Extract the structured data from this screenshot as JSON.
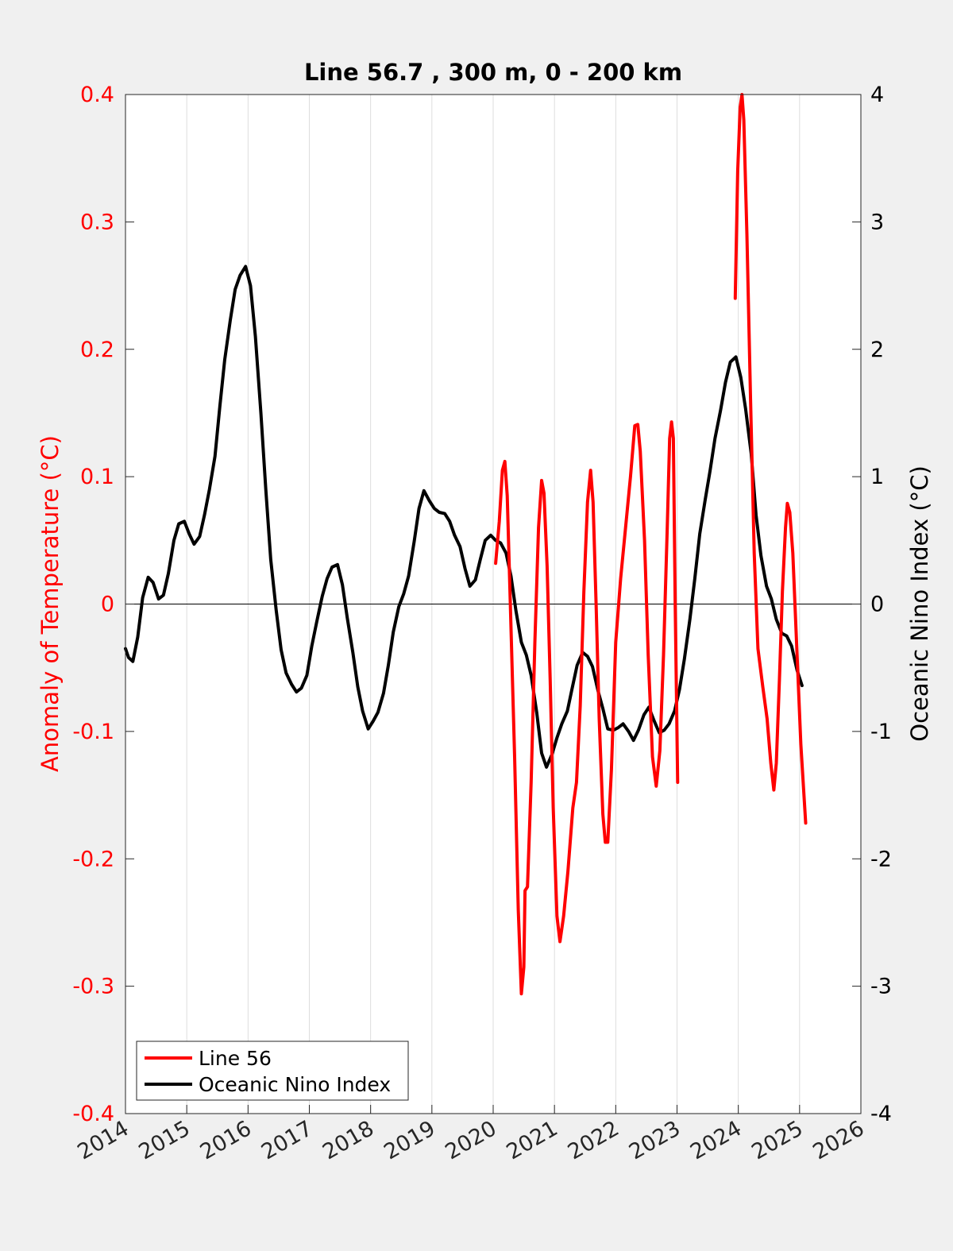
{
  "chart_data": {
    "type": "line",
    "title": "Line 56.7 , 300 m, 0 - 200 km",
    "xlim": [
      2014,
      2026
    ],
    "x_ticks": [
      "2014",
      "2015",
      "2016",
      "2017",
      "2018",
      "2019",
      "2020",
      "2021",
      "2022",
      "2023",
      "2024",
      "2025",
      "2026"
    ],
    "y_left": {
      "label": "Anomaly of Temperature (°C)",
      "lim": [
        -0.4,
        0.4
      ],
      "ticks": [
        "-0.4",
        "-0.3",
        "-0.2",
        "-0.1",
        "0",
        "0.1",
        "0.2",
        "0.3",
        "0.4"
      ],
      "color": "#ff0000"
    },
    "y_right": {
      "label": "Oceanic Nino Index (°C)",
      "lim": [
        -4,
        4
      ],
      "ticks": [
        "-4",
        "-3",
        "-2",
        "-1",
        "0",
        "1",
        "2",
        "3",
        "4"
      ],
      "color": "#000000"
    },
    "grid": "vertical",
    "zero_line": true,
    "legend": {
      "placement": "bottom-left",
      "entries": [
        "Line 56",
        "Oceanic Nino Index"
      ]
    },
    "series": [
      {
        "name": "Line 56",
        "axis": "left",
        "color": "#ff0000",
        "segments": [
          [
            [
              2020.04,
              0.032
            ],
            [
              2020.1,
              0.065
            ],
            [
              2020.15,
              0.105
            ],
            [
              2020.19,
              0.112
            ],
            [
              2020.23,
              0.085
            ],
            [
              2020.28,
              0.0
            ],
            [
              2020.35,
              -0.12
            ],
            [
              2020.41,
              -0.24
            ],
            [
              2020.46,
              -0.306
            ],
            [
              2020.5,
              -0.285
            ],
            [
              2020.52,
              -0.225
            ],
            [
              2020.56,
              -0.222
            ],
            [
              2020.62,
              -0.14
            ],
            [
              2020.68,
              -0.03
            ],
            [
              2020.74,
              0.06
            ],
            [
              2020.79,
              0.097
            ],
            [
              2020.83,
              0.087
            ],
            [
              2020.88,
              0.03
            ],
            [
              2020.93,
              -0.06
            ],
            [
              2020.98,
              -0.16
            ],
            [
              2021.04,
              -0.245
            ],
            [
              2021.09,
              -0.265
            ],
            [
              2021.15,
              -0.245
            ],
            [
              2021.22,
              -0.21
            ],
            [
              2021.3,
              -0.16
            ],
            [
              2021.36,
              -0.14
            ],
            [
              2021.42,
              -0.08
            ],
            [
              2021.48,
              0.01
            ],
            [
              2021.54,
              0.08
            ],
            [
              2021.59,
              0.105
            ],
            [
              2021.63,
              0.08
            ],
            [
              2021.68,
              0.0
            ],
            [
              2021.73,
              -0.09
            ],
            [
              2021.79,
              -0.165
            ],
            [
              2021.83,
              -0.187
            ],
            [
              2021.87,
              -0.187
            ],
            [
              2021.93,
              -0.13
            ],
            [
              2022.0,
              -0.03
            ],
            [
              2022.08,
              0.02
            ],
            [
              2022.16,
              0.06
            ],
            [
              2022.24,
              0.1
            ],
            [
              2022.31,
              0.14
            ],
            [
              2022.36,
              0.141
            ],
            [
              2022.4,
              0.12
            ],
            [
              2022.47,
              0.05
            ],
            [
              2022.53,
              -0.04
            ],
            [
              2022.6,
              -0.12
            ],
            [
              2022.66,
              -0.143
            ],
            [
              2022.72,
              -0.115
            ],
            [
              2022.78,
              -0.04
            ],
            [
              2022.84,
              0.06
            ],
            [
              2022.88,
              0.13
            ],
            [
              2022.91,
              0.143
            ],
            [
              2022.94,
              0.13
            ],
            [
              2022.97,
              0.0
            ],
            [
              2023.01,
              -0.14
            ]
          ],
          [
            [
              2023.95,
              0.24
            ],
            [
              2023.99,
              0.34
            ],
            [
              2024.03,
              0.39
            ],
            [
              2024.06,
              0.4
            ],
            [
              2024.09,
              0.38
            ],
            [
              2024.14,
              0.29
            ],
            [
              2024.2,
              0.16
            ],
            [
              2024.26,
              0.04
            ],
            [
              2024.32,
              -0.035
            ],
            [
              2024.4,
              -0.065
            ],
            [
              2024.47,
              -0.09
            ],
            [
              2024.53,
              -0.125
            ],
            [
              2024.58,
              -0.146
            ],
            [
              2024.62,
              -0.125
            ],
            [
              2024.67,
              -0.06
            ],
            [
              2024.72,
              0.01
            ],
            [
              2024.77,
              0.06
            ],
            [
              2024.8,
              0.079
            ],
            [
              2024.84,
              0.072
            ],
            [
              2024.89,
              0.04
            ],
            [
              2024.95,
              -0.03
            ],
            [
              2025.02,
              -0.11
            ],
            [
              2025.1,
              -0.172
            ]
          ]
        ]
      },
      {
        "name": "Oceanic Nino Index",
        "axis": "right",
        "color": "#000000",
        "points": [
          [
            2014.0,
            -0.35
          ],
          [
            2014.05,
            -0.42
          ],
          [
            2014.12,
            -0.45
          ],
          [
            2014.2,
            -0.26
          ],
          [
            2014.28,
            0.05
          ],
          [
            2014.37,
            0.21
          ],
          [
            2014.45,
            0.17
          ],
          [
            2014.54,
            0.04
          ],
          [
            2014.62,
            0.07
          ],
          [
            2014.7,
            0.24
          ],
          [
            2014.79,
            0.5
          ],
          [
            2014.87,
            0.63
          ],
          [
            2014.96,
            0.65
          ],
          [
            2015.04,
            0.55
          ],
          [
            2015.12,
            0.47
          ],
          [
            2015.21,
            0.53
          ],
          [
            2015.29,
            0.7
          ],
          [
            2015.37,
            0.9
          ],
          [
            2015.46,
            1.16
          ],
          [
            2015.54,
            1.55
          ],
          [
            2015.62,
            1.92
          ],
          [
            2015.71,
            2.23
          ],
          [
            2015.79,
            2.47
          ],
          [
            2015.87,
            2.58
          ],
          [
            2015.96,
            2.65
          ],
          [
            2016.04,
            2.5
          ],
          [
            2016.12,
            2.1
          ],
          [
            2016.21,
            1.5
          ],
          [
            2016.29,
            0.9
          ],
          [
            2016.37,
            0.35
          ],
          [
            2016.46,
            -0.05
          ],
          [
            2016.54,
            -0.36
          ],
          [
            2016.62,
            -0.54
          ],
          [
            2016.71,
            -0.63
          ],
          [
            2016.79,
            -0.69
          ],
          [
            2016.87,
            -0.66
          ],
          [
            2016.96,
            -0.56
          ],
          [
            2017.04,
            -0.33
          ],
          [
            2017.12,
            -0.14
          ],
          [
            2017.21,
            0.06
          ],
          [
            2017.29,
            0.2
          ],
          [
            2017.37,
            0.29
          ],
          [
            2017.46,
            0.31
          ],
          [
            2017.54,
            0.15
          ],
          [
            2017.62,
            -0.11
          ],
          [
            2017.71,
            -0.38
          ],
          [
            2017.79,
            -0.65
          ],
          [
            2017.87,
            -0.84
          ],
          [
            2017.96,
            -0.98
          ],
          [
            2018.04,
            -0.92
          ],
          [
            2018.12,
            -0.85
          ],
          [
            2018.21,
            -0.7
          ],
          [
            2018.29,
            -0.48
          ],
          [
            2018.37,
            -0.22
          ],
          [
            2018.46,
            -0.02
          ],
          [
            2018.54,
            0.08
          ],
          [
            2018.62,
            0.22
          ],
          [
            2018.71,
            0.49
          ],
          [
            2018.79,
            0.75
          ],
          [
            2018.87,
            0.89
          ],
          [
            2018.96,
            0.81
          ],
          [
            2019.04,
            0.75
          ],
          [
            2019.12,
            0.72
          ],
          [
            2019.21,
            0.71
          ],
          [
            2019.29,
            0.65
          ],
          [
            2019.37,
            0.54
          ],
          [
            2019.46,
            0.45
          ],
          [
            2019.54,
            0.28
          ],
          [
            2019.62,
            0.14
          ],
          [
            2019.71,
            0.19
          ],
          [
            2019.79,
            0.35
          ],
          [
            2019.87,
            0.5
          ],
          [
            2019.96,
            0.54
          ],
          [
            2020.04,
            0.5
          ],
          [
            2020.12,
            0.48
          ],
          [
            2020.21,
            0.4
          ],
          [
            2020.29,
            0.22
          ],
          [
            2020.37,
            -0.05
          ],
          [
            2020.46,
            -0.3
          ],
          [
            2020.54,
            -0.4
          ],
          [
            2020.62,
            -0.56
          ],
          [
            2020.71,
            -0.85
          ],
          [
            2020.79,
            -1.17
          ],
          [
            2020.87,
            -1.28
          ],
          [
            2020.96,
            -1.18
          ],
          [
            2021.04,
            -1.05
          ],
          [
            2021.12,
            -0.94
          ],
          [
            2021.21,
            -0.84
          ],
          [
            2021.29,
            -0.66
          ],
          [
            2021.37,
            -0.48
          ],
          [
            2021.46,
            -0.38
          ],
          [
            2021.54,
            -0.41
          ],
          [
            2021.62,
            -0.49
          ],
          [
            2021.71,
            -0.68
          ],
          [
            2021.79,
            -0.82
          ],
          [
            2021.87,
            -0.98
          ],
          [
            2021.96,
            -0.99
          ],
          [
            2022.04,
            -0.97
          ],
          [
            2022.12,
            -0.94
          ],
          [
            2022.21,
            -1.0
          ],
          [
            2022.29,
            -1.07
          ],
          [
            2022.37,
            -0.99
          ],
          [
            2022.46,
            -0.87
          ],
          [
            2022.54,
            -0.81
          ],
          [
            2022.62,
            -0.91
          ],
          [
            2022.71,
            -1.01
          ],
          [
            2022.79,
            -0.99
          ],
          [
            2022.87,
            -0.94
          ],
          [
            2022.96,
            -0.84
          ],
          [
            2023.04,
            -0.67
          ],
          [
            2023.12,
            -0.43
          ],
          [
            2023.21,
            -0.12
          ],
          [
            2023.29,
            0.2
          ],
          [
            2023.37,
            0.55
          ],
          [
            2023.46,
            0.82
          ],
          [
            2023.54,
            1.05
          ],
          [
            2023.62,
            1.3
          ],
          [
            2023.71,
            1.52
          ],
          [
            2023.79,
            1.74
          ],
          [
            2023.87,
            1.9
          ],
          [
            2023.96,
            1.94
          ],
          [
            2024.04,
            1.78
          ],
          [
            2024.12,
            1.53
          ],
          [
            2024.21,
            1.18
          ],
          [
            2024.29,
            0.7
          ],
          [
            2024.37,
            0.38
          ],
          [
            2024.46,
            0.14
          ],
          [
            2024.54,
            0.04
          ],
          [
            2024.62,
            -0.12
          ],
          [
            2024.71,
            -0.23
          ],
          [
            2024.79,
            -0.25
          ],
          [
            2024.87,
            -0.33
          ],
          [
            2024.96,
            -0.52
          ],
          [
            2025.04,
            -0.64
          ]
        ]
      }
    ]
  }
}
